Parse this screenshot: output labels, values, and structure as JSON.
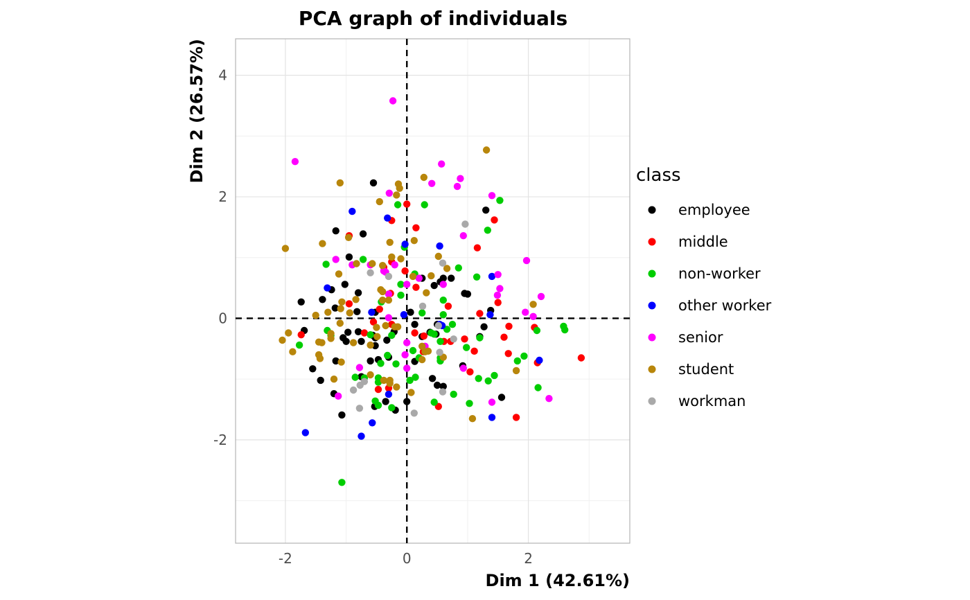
{
  "chart_data": {
    "type": "scatter",
    "title": "PCA graph of individuals",
    "xlabel": "Dim 1 (42.61%)",
    "ylabel": "Dim 2 (26.57%)",
    "xlim": [
      -2.82,
      3.67
    ],
    "ylim": [
      -3.7,
      4.6
    ],
    "x_ticks": [
      -2,
      0,
      2
    ],
    "y_ticks": [
      -2,
      0,
      2,
      4
    ],
    "grid": true,
    "reference_lines": {
      "x": 0,
      "y": 0,
      "style": "dashed"
    },
    "legend": {
      "title": "class",
      "placement": "right"
    },
    "series": [
      {
        "name": "employee",
        "color": "#000000",
        "points": [
          [
            -0.55,
            2.23
          ],
          [
            -0.72,
            1.39
          ],
          [
            -1.17,
            1.44
          ],
          [
            -0.95,
            1.01
          ],
          [
            -1.02,
            0.56
          ],
          [
            -0.8,
            0.42
          ],
          [
            -1.74,
            0.27
          ],
          [
            -1.39,
            0.31
          ],
          [
            -1.24,
            0.47
          ],
          [
            -1.18,
            0.17
          ],
          [
            -0.82,
            0.11
          ],
          [
            -0.52,
            0.1
          ],
          [
            -1.69,
            -0.2
          ],
          [
            -1.05,
            -0.32
          ],
          [
            -1.0,
            -0.38
          ],
          [
            -0.97,
            -0.23
          ],
          [
            -0.8,
            -0.22
          ],
          [
            -0.75,
            -0.38
          ],
          [
            -0.52,
            -0.32
          ],
          [
            -0.56,
            -0.28
          ],
          [
            -0.52,
            -0.45
          ],
          [
            -0.33,
            -0.36
          ],
          [
            -0.21,
            -0.22
          ],
          [
            -1.55,
            -0.83
          ],
          [
            -1.42,
            -1.02
          ],
          [
            -1.17,
            -0.7
          ],
          [
            -1.2,
            -1.24
          ],
          [
            -1.07,
            -1.59
          ],
          [
            -0.75,
            -0.96
          ],
          [
            -0.6,
            -0.7
          ],
          [
            -0.53,
            -1.45
          ],
          [
            -0.47,
            -0.68
          ],
          [
            -0.35,
            -1.37
          ],
          [
            -0.3,
            -0.64
          ],
          [
            -0.19,
            -1.51
          ],
          [
            0.0,
            -1.37
          ],
          [
            0.06,
            0.1
          ],
          [
            0.13,
            -0.1
          ],
          [
            0.25,
            0.66
          ],
          [
            0.45,
            0.54
          ],
          [
            0.5,
            -0.1
          ],
          [
            0.6,
            0.66
          ],
          [
            0.73,
            0.66
          ],
          [
            0.95,
            0.41
          ],
          [
            1.0,
            0.4
          ],
          [
            0.48,
            -0.26
          ],
          [
            0.38,
            -0.23
          ],
          [
            0.42,
            -0.99
          ],
          [
            0.5,
            -1.1
          ],
          [
            0.6,
            -1.12
          ],
          [
            0.92,
            -0.78
          ],
          [
            1.2,
            -0.3
          ],
          [
            1.27,
            -0.14
          ],
          [
            1.38,
            0.13
          ],
          [
            1.3,
            1.78
          ],
          [
            1.56,
            -1.3
          ],
          [
            0.55,
            0.6
          ],
          [
            0.13,
            -0.71
          ],
          [
            0.25,
            -0.3
          ]
        ]
      },
      {
        "name": "middle",
        "color": "#ff0000",
        "points": [
          [
            0.0,
            1.88
          ],
          [
            -0.25,
            1.61
          ],
          [
            -0.95,
            1.36
          ],
          [
            0.15,
            1.49
          ],
          [
            1.16,
            1.16
          ],
          [
            1.44,
            1.62
          ],
          [
            -0.25,
            0.93
          ],
          [
            -0.38,
            0.84
          ],
          [
            -0.03,
            0.78
          ],
          [
            0.15,
            0.51
          ],
          [
            -0.95,
            0.24
          ],
          [
            -0.45,
            0.15
          ],
          [
            -0.27,
            0.41
          ],
          [
            0.68,
            0.2
          ],
          [
            1.5,
            0.26
          ],
          [
            1.2,
            0.08
          ],
          [
            -1.74,
            -0.27
          ],
          [
            -0.55,
            -0.06
          ],
          [
            -0.7,
            -0.24
          ],
          [
            0.13,
            -0.24
          ],
          [
            0.28,
            -0.29
          ],
          [
            0.72,
            -0.38
          ],
          [
            0.95,
            -0.34
          ],
          [
            1.11,
            -0.54
          ],
          [
            1.04,
            -0.88
          ],
          [
            1.6,
            -0.31
          ],
          [
            1.68,
            -0.13
          ],
          [
            1.67,
            -0.58
          ],
          [
            2.1,
            -0.15
          ],
          [
            2.15,
            -0.73
          ],
          [
            2.87,
            -0.65
          ],
          [
            0.27,
            -0.55
          ],
          [
            -0.3,
            -1.15
          ],
          [
            -0.47,
            -1.17
          ],
          [
            0.52,
            -1.45
          ],
          [
            1.8,
            -1.63
          ],
          [
            -0.25,
            -0.1
          ],
          [
            0.61,
            -0.38
          ]
        ]
      },
      {
        "name": "non-worker",
        "color": "#00cd00",
        "points": [
          [
            1.53,
            1.94
          ],
          [
            1.33,
            1.45
          ],
          [
            0.29,
            1.87
          ],
          [
            -0.15,
            1.87
          ],
          [
            -0.04,
            1.17
          ],
          [
            -1.33,
            0.89
          ],
          [
            -0.72,
            0.97
          ],
          [
            0.85,
            0.83
          ],
          [
            1.15,
            0.68
          ],
          [
            0.13,
            0.73
          ],
          [
            -0.1,
            0.56
          ],
          [
            -0.1,
            0.38
          ],
          [
            -0.42,
            0.27
          ],
          [
            0.6,
            0.3
          ],
          [
            0.25,
            0.09
          ],
          [
            0.6,
            0.06
          ],
          [
            -1.31,
            -0.2
          ],
          [
            -1.25,
            -0.28
          ],
          [
            -1.77,
            -0.44
          ],
          [
            -0.6,
            -0.27
          ],
          [
            -0.25,
            -0.28
          ],
          [
            0.4,
            -0.24
          ],
          [
            0.45,
            -0.26
          ],
          [
            0.55,
            -0.38
          ],
          [
            0.75,
            -0.1
          ],
          [
            0.66,
            -0.18
          ],
          [
            0.98,
            -0.48
          ],
          [
            1.2,
            -0.32
          ],
          [
            1.82,
            -0.7
          ],
          [
            1.93,
            -0.62
          ],
          [
            2.14,
            -0.2
          ],
          [
            2.58,
            -0.13
          ],
          [
            2.6,
            -0.19
          ],
          [
            -0.18,
            -0.75
          ],
          [
            0.1,
            -0.53
          ],
          [
            0.14,
            -0.97
          ],
          [
            -0.85,
            -0.97
          ],
          [
            -0.7,
            -0.98
          ],
          [
            -0.47,
            -0.98
          ],
          [
            -0.47,
            -1.05
          ],
          [
            -0.32,
            -0.61
          ],
          [
            -0.43,
            -0.74
          ],
          [
            0.05,
            -1.02
          ],
          [
            0.45,
            -1.38
          ],
          [
            0.2,
            -0.65
          ],
          [
            0.55,
            -0.7
          ],
          [
            0.77,
            -1.25
          ],
          [
            1.03,
            -1.4
          ],
          [
            1.18,
            -0.99
          ],
          [
            1.34,
            -1.03
          ],
          [
            1.44,
            -0.94
          ],
          [
            2.16,
            -1.14
          ],
          [
            -0.52,
            -1.36
          ],
          [
            -0.47,
            -1.43
          ],
          [
            -0.25,
            -1.47
          ],
          [
            -1.07,
            -2.7
          ],
          [
            0.55,
            -0.65
          ]
        ]
      },
      {
        "name": "other worker",
        "color": "#0000ff",
        "points": [
          [
            -0.9,
            1.76
          ],
          [
            -0.32,
            1.65
          ],
          [
            -0.03,
            1.22
          ],
          [
            0.54,
            1.19
          ],
          [
            1.4,
            0.69
          ],
          [
            -1.31,
            0.5
          ],
          [
            -0.58,
            0.1
          ],
          [
            -0.05,
            0.06
          ],
          [
            1.37,
            0.06
          ],
          [
            0.54,
            -0.1
          ],
          [
            0.58,
            -0.12
          ],
          [
            2.18,
            -0.69
          ],
          [
            -0.3,
            -1.25
          ],
          [
            -0.57,
            -1.72
          ],
          [
            -0.75,
            -1.94
          ],
          [
            -1.67,
            -1.88
          ],
          [
            1.4,
            -1.63
          ]
        ]
      },
      {
        "name": "senior",
        "color": "#ff00ff",
        "points": [
          [
            -0.23,
            3.58
          ],
          [
            -1.84,
            2.58
          ],
          [
            0.57,
            2.54
          ],
          [
            0.88,
            2.3
          ],
          [
            0.41,
            2.22
          ],
          [
            0.83,
            2.17
          ],
          [
            -0.29,
            2.06
          ],
          [
            1.4,
            2.02
          ],
          [
            0.93,
            1.36
          ],
          [
            -0.9,
            0.88
          ],
          [
            -1.17,
            0.97
          ],
          [
            1.97,
            0.95
          ],
          [
            1.5,
            0.72
          ],
          [
            -0.6,
            0.88
          ],
          [
            -0.38,
            0.78
          ],
          [
            -0.2,
            0.88
          ],
          [
            0.2,
            0.66
          ],
          [
            0.0,
            0.56
          ],
          [
            0.6,
            0.56
          ],
          [
            1.53,
            0.49
          ],
          [
            1.49,
            0.38
          ],
          [
            2.21,
            0.36
          ],
          [
            1.95,
            0.1
          ],
          [
            2.08,
            0.03
          ],
          [
            -0.3,
            0.01
          ],
          [
            0.0,
            -0.4
          ],
          [
            0.3,
            -0.46
          ],
          [
            -0.03,
            -0.6
          ],
          [
            -0.78,
            -0.81
          ],
          [
            0.0,
            -0.82
          ],
          [
            0.93,
            -0.82
          ],
          [
            -1.13,
            -1.28
          ],
          [
            1.4,
            -1.38
          ],
          [
            2.34,
            -1.32
          ],
          [
            -0.35,
            0.76
          ],
          [
            -0.3,
            0.4
          ]
        ]
      },
      {
        "name": "student",
        "color": "#b8860b",
        "points": [
          [
            1.31,
            2.77
          ],
          [
            0.28,
            2.32
          ],
          [
            -0.14,
            2.21
          ],
          [
            -0.12,
            2.14
          ],
          [
            -0.17,
            2.03
          ],
          [
            -1.1,
            2.23
          ],
          [
            -0.45,
            1.92
          ],
          [
            0.12,
            1.28
          ],
          [
            -2.0,
            1.15
          ],
          [
            -1.39,
            1.23
          ],
          [
            -0.96,
            1.33
          ],
          [
            -0.28,
            1.25
          ],
          [
            0.52,
            1.02
          ],
          [
            -0.25,
            1.01
          ],
          [
            0.66,
            0.82
          ],
          [
            -0.1,
            0.98
          ],
          [
            -0.57,
            0.9
          ],
          [
            -0.4,
            0.87
          ],
          [
            0.1,
            0.69
          ],
          [
            -0.83,
            0.9
          ],
          [
            -0.43,
            0.47
          ],
          [
            -0.4,
            0.44
          ],
          [
            -0.4,
            0.3
          ],
          [
            -1.12,
            0.73
          ],
          [
            -0.84,
            0.31
          ],
          [
            -1.07,
            0.27
          ],
          [
            -1.09,
            0.16
          ],
          [
            -1.3,
            0.1
          ],
          [
            -0.94,
            0.09
          ],
          [
            -0.3,
            0.3
          ],
          [
            2.08,
            0.23
          ],
          [
            0.32,
            0.42
          ],
          [
            -1.5,
            0.05
          ],
          [
            -1.1,
            -0.08
          ],
          [
            -1.95,
            -0.24
          ],
          [
            -2.05,
            -0.36
          ],
          [
            -1.25,
            -0.25
          ],
          [
            -1.25,
            -0.33
          ],
          [
            -1.45,
            -0.39
          ],
          [
            -1.4,
            -0.4
          ],
          [
            -1.88,
            -0.55
          ],
          [
            -1.45,
            -0.6
          ],
          [
            -1.43,
            -0.66
          ],
          [
            -1.08,
            -0.72
          ],
          [
            -0.88,
            -0.4
          ],
          [
            -0.6,
            -0.44
          ],
          [
            -0.49,
            -0.3
          ],
          [
            -0.5,
            -0.15
          ],
          [
            -0.35,
            -0.12
          ],
          [
            -0.2,
            -0.14
          ],
          [
            -0.15,
            -0.14
          ],
          [
            0.25,
            -0.46
          ],
          [
            0.3,
            -0.55
          ],
          [
            0.35,
            -0.54
          ],
          [
            0.25,
            -0.68
          ],
          [
            0.6,
            -0.64
          ],
          [
            -0.6,
            -0.93
          ],
          [
            -0.38,
            -1.02
          ],
          [
            -0.28,
            -1.02
          ],
          [
            -0.28,
            -1.07
          ],
          [
            -0.17,
            -1.13
          ],
          [
            0.07,
            -1.22
          ],
          [
            1.08,
            -1.65
          ],
          [
            1.8,
            -0.86
          ],
          [
            -1.2,
            -1.0
          ],
          [
            0.4,
            0.7
          ]
        ]
      },
      {
        "name": "workman",
        "color": "#a9a9a9",
        "points": [
          [
            0.96,
            1.55
          ],
          [
            0.59,
            0.91
          ],
          [
            -0.6,
            0.75
          ],
          [
            -0.3,
            0.69
          ],
          [
            0.77,
            -0.34
          ],
          [
            0.54,
            -0.56
          ],
          [
            0.59,
            -1.21
          ],
          [
            -0.88,
            -1.18
          ],
          [
            -0.77,
            -1.1
          ],
          [
            -0.7,
            -1.04
          ],
          [
            -0.78,
            -1.48
          ],
          [
            0.12,
            -1.56
          ],
          [
            0.26,
            0.2
          ],
          [
            0.52,
            -0.12
          ]
        ]
      }
    ]
  }
}
